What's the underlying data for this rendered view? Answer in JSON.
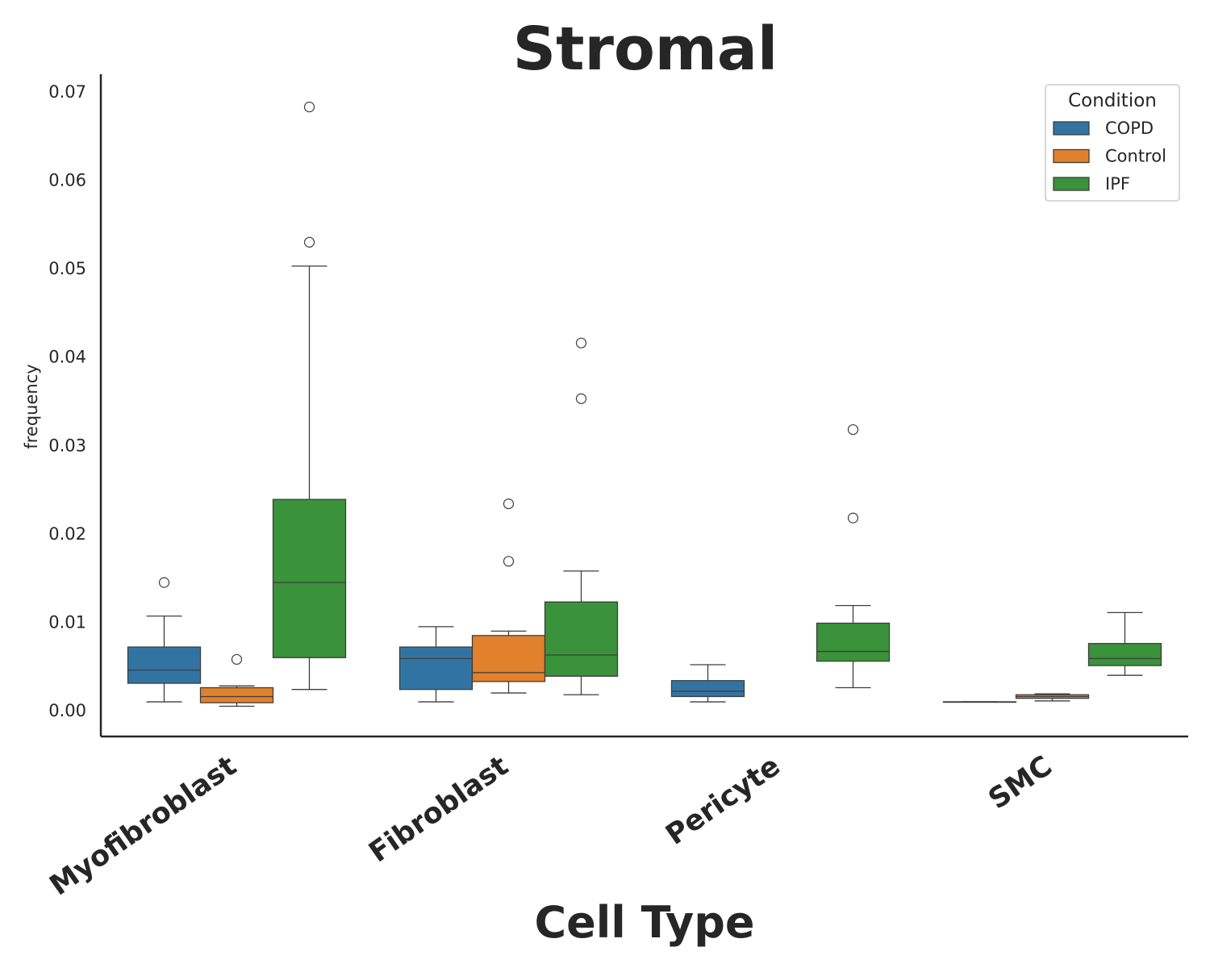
{
  "chart_data": {
    "type": "box",
    "title": "Stromal",
    "xlabel": "Cell Type",
    "ylabel": "frequency",
    "ylim": [
      -0.003,
      0.072
    ],
    "yticks": [
      "0.00",
      "0.01",
      "0.02",
      "0.03",
      "0.04",
      "0.05",
      "0.06",
      "0.07"
    ],
    "categories": [
      "Myofibroblast",
      "Fibroblast",
      "Pericyte",
      "SMC"
    ],
    "grid": false,
    "legend": {
      "title": "Condition",
      "position": "top-right"
    },
    "series": [
      {
        "name": "COPD",
        "color": "#3274a1",
        "boxes": [
          {
            "min": 0.001,
            "q1": 0.0031,
            "median": 0.0046,
            "q3": 0.0072,
            "max": 0.0107,
            "outliers": [
              0.0145
            ]
          },
          {
            "min": 0.001,
            "q1": 0.0024,
            "median": 0.0059,
            "q3": 0.0072,
            "max": 0.0095,
            "outliers": []
          },
          {
            "min": 0.001,
            "q1": 0.0016,
            "median": 0.0022,
            "q3": 0.0034,
            "max": 0.0052,
            "outliers": []
          },
          {
            "min": 0.001,
            "q1": 0.001,
            "median": 0.001,
            "q3": 0.001,
            "max": 0.001,
            "outliers": []
          }
        ]
      },
      {
        "name": "Control",
        "color": "#e1812c",
        "boxes": [
          {
            "min": 0.0005,
            "q1": 0.0009,
            "median": 0.0016,
            "q3": 0.0026,
            "max": 0.0028,
            "outliers": [
              0.0058
            ]
          },
          {
            "min": 0.002,
            "q1": 0.0033,
            "median": 0.0043,
            "q3": 0.0085,
            "max": 0.009,
            "outliers": [
              0.0169,
              0.0234
            ]
          },
          null,
          {
            "min": 0.0011,
            "q1": 0.0014,
            "median": 0.0016,
            "q3": 0.0018,
            "max": 0.0019,
            "outliers": []
          }
        ]
      },
      {
        "name": "IPF",
        "color": "#3a923a",
        "boxes": [
          {
            "min": 0.0024,
            "q1": 0.006,
            "median": 0.0145,
            "q3": 0.0239,
            "max": 0.0503,
            "outliers": [
              0.053,
              0.0683
            ]
          },
          {
            "min": 0.0018,
            "q1": 0.0039,
            "median": 0.0063,
            "q3": 0.0123,
            "max": 0.0158,
            "outliers": [
              0.0353,
              0.0416
            ]
          },
          {
            "min": 0.0026,
            "q1": 0.0056,
            "median": 0.0067,
            "q3": 0.0099,
            "max": 0.0119,
            "outliers": [
              0.0218,
              0.0318
            ]
          },
          {
            "min": 0.004,
            "q1": 0.0051,
            "median": 0.0059,
            "q3": 0.0076,
            "max": 0.0111,
            "outliers": []
          }
        ]
      }
    ]
  }
}
